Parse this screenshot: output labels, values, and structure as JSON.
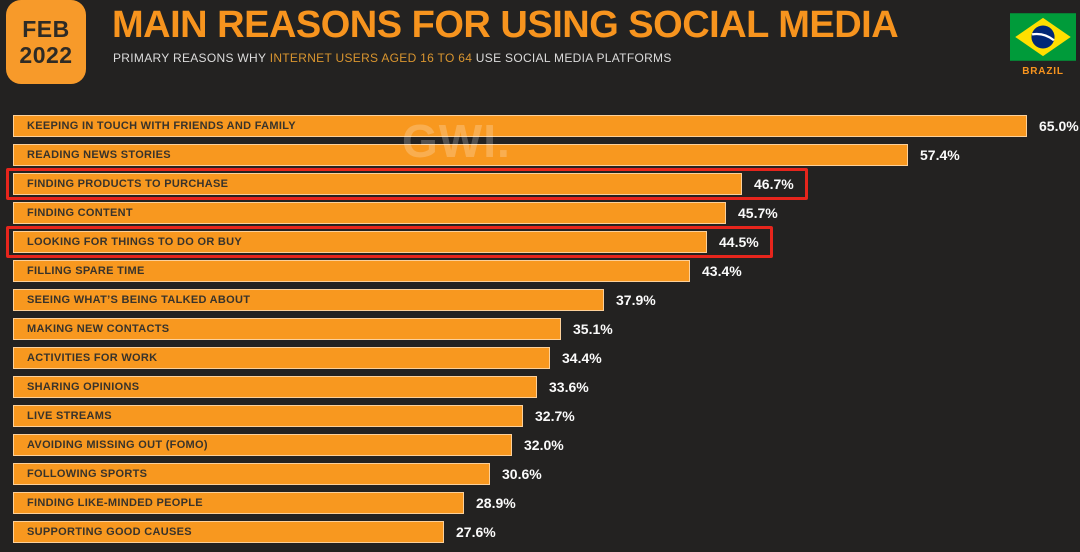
{
  "header": {
    "date_badge": {
      "month": "FEB",
      "year": "2022"
    },
    "title": "MAIN REASONS FOR USING SOCIAL MEDIA",
    "subtitle": {
      "prefix": "PRIMARY REASONS WHY ",
      "highlight": "INTERNET USERS AGED 16 TO 64",
      "suffix": " USE SOCIAL MEDIA PLATFORMS"
    },
    "country": {
      "name": "BRAZIL"
    }
  },
  "watermark": "GWI.",
  "chart_data": {
    "type": "bar",
    "orientation": "horizontal",
    "title": "MAIN REASONS FOR USING SOCIAL MEDIA",
    "unit": "%",
    "xlim": [
      0,
      65
    ],
    "grid": false,
    "legend": false,
    "categories": [
      "KEEPING IN TOUCH WITH FRIENDS AND FAMILY",
      "READING NEWS STORIES",
      "FINDING PRODUCTS TO PURCHASE",
      "FINDING CONTENT",
      "LOOKING FOR THINGS TO DO OR BUY",
      "FILLING SPARE TIME",
      "SEEING WHAT’S BEING TALKED ABOUT",
      "MAKING NEW CONTACTS",
      "ACTIVITIES FOR WORK",
      "SHARING OPINIONS",
      "LIVE STREAMS",
      "AVOIDING MISSING OUT (FOMO)",
      "FOLLOWING SPORTS",
      "FINDING LIKE-MINDED PEOPLE",
      "SUPPORTING GOOD CAUSES"
    ],
    "values": [
      65.0,
      57.4,
      46.7,
      45.7,
      44.5,
      43.4,
      37.9,
      35.1,
      34.4,
      33.6,
      32.7,
      32.0,
      30.6,
      28.9,
      27.6
    ],
    "value_labels": [
      "65.0%",
      "57.4%",
      "46.7%",
      "45.7%",
      "44.5%",
      "43.4%",
      "37.9%",
      "35.1%",
      "34.4%",
      "33.6%",
      "32.7%",
      "32.0%",
      "30.6%",
      "28.9%",
      "27.6%"
    ],
    "highlighted_indices": [
      2,
      4
    ],
    "highlight_style": "red-outline"
  },
  "colors": {
    "background": "#232221",
    "bar_orange": "#F8981F",
    "title_orange": "#F7941E",
    "badge_orange": "#F79A2A",
    "subtitle_highlight_orange": "#D9952F",
    "highlight_red": "#E6251C",
    "value_text": "#FAFAFA",
    "bar_label_text": "#38332B",
    "flag_green": "#009B3A",
    "flag_yellow": "#FFDF00",
    "flag_blue": "#002776"
  }
}
